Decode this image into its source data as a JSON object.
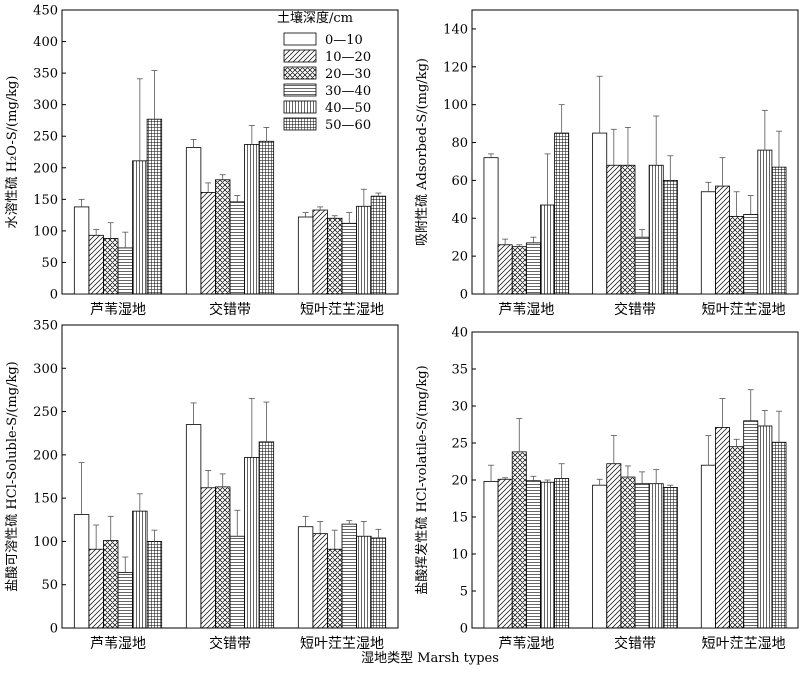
{
  "legend": {
    "title": "土壤深度/cm",
    "items": [
      "0—10",
      "10—20",
      "20—30",
      "30—40",
      "40—50",
      "50—60"
    ]
  },
  "patterns": [
    "empty",
    "diag",
    "cross",
    "hlines",
    "vlines",
    "grid"
  ],
  "xlabel_common": "湿地类型 Marsh types",
  "chart_data": [
    {
      "type": "bar",
      "title": "",
      "ylabel": "水溶性硫 H₂O-S/(mg/kg)",
      "categories": [
        "芦苇湿地",
        "交错带",
        "短叶茳芏湿地"
      ],
      "ylim": [
        0,
        450
      ],
      "yticks": [
        0,
        50,
        100,
        150,
        200,
        250,
        300,
        350,
        400,
        450
      ],
      "series": [
        {
          "name": "0—10",
          "values": [
            138,
            232,
            122
          ],
          "errors": [
            12,
            13,
            7
          ]
        },
        {
          "name": "10—20",
          "values": [
            93,
            161,
            133
          ],
          "errors": [
            9,
            15,
            5
          ]
        },
        {
          "name": "20—30",
          "values": [
            88,
            181,
            120
          ],
          "errors": [
            25,
            8,
            4
          ]
        },
        {
          "name": "30—40",
          "values": [
            73,
            146,
            112
          ],
          "errors": [
            25,
            10,
            17
          ]
        },
        {
          "name": "40—50",
          "values": [
            211,
            237,
            139
          ],
          "errors": [
            130,
            30,
            27
          ]
        },
        {
          "name": "50—60",
          "values": [
            277,
            242,
            155
          ],
          "errors": [
            77,
            22,
            5
          ]
        }
      ]
    },
    {
      "type": "bar",
      "title": "",
      "ylabel": "吸附性硫 Adsorbed-S/(mg/kg)",
      "categories": [
        "芦苇湿地",
        "交错带",
        "短叶茳芏湿地"
      ],
      "ylim": [
        0,
        150
      ],
      "yticks": [
        0,
        20,
        40,
        60,
        80,
        100,
        120,
        140
      ],
      "series": [
        {
          "name": "0—10",
          "values": [
            72,
            85,
            54
          ],
          "errors": [
            2,
            30,
            5
          ]
        },
        {
          "name": "10—20",
          "values": [
            26,
            68,
            57
          ],
          "errors": [
            3,
            19,
            15
          ]
        },
        {
          "name": "20—30",
          "values": [
            25,
            68,
            41
          ],
          "errors": [
            1,
            20,
            13
          ]
        },
        {
          "name": "30—40",
          "values": [
            27,
            30,
            42
          ],
          "errors": [
            3,
            4,
            10
          ]
        },
        {
          "name": "40—50",
          "values": [
            47,
            68,
            76
          ],
          "errors": [
            27,
            26,
            21
          ]
        },
        {
          "name": "50—60",
          "values": [
            85,
            60,
            67
          ],
          "errors": [
            15,
            13,
            19
          ]
        }
      ]
    },
    {
      "type": "bar",
      "title": "",
      "ylabel": "盐酸可溶性硫 HCl-Soluble-S/(mg/kg)",
      "categories": [
        "芦苇湿地",
        "交错带",
        "短叶茳芏湿地"
      ],
      "ylim": [
        0,
        350
      ],
      "yticks": [
        0,
        50,
        100,
        150,
        200,
        250,
        300,
        350
      ],
      "series": [
        {
          "name": "0—10",
          "values": [
            131,
            235,
            117
          ],
          "errors": [
            60,
            25,
            12
          ]
        },
        {
          "name": "10—20",
          "values": [
            91,
            162,
            109
          ],
          "errors": [
            28,
            20,
            14
          ]
        },
        {
          "name": "20—30",
          "values": [
            101,
            163,
            91
          ],
          "errors": [
            28,
            15,
            22
          ]
        },
        {
          "name": "30—40",
          "values": [
            64,
            106,
            120
          ],
          "errors": [
            18,
            30,
            4
          ]
        },
        {
          "name": "40—50",
          "values": [
            135,
            197,
            106
          ],
          "errors": [
            20,
            68,
            17
          ]
        },
        {
          "name": "50—60",
          "values": [
            100,
            215,
            104
          ],
          "errors": [
            13,
            46,
            10
          ]
        }
      ]
    },
    {
      "type": "bar",
      "title": "",
      "ylabel": "盐酸挥发性硫 HCl-volatile-S/(mg/kg)",
      "categories": [
        "芦苇湿地",
        "交错带",
        "短叶茳芏湿地"
      ],
      "ylim": [
        0,
        40
      ],
      "yticks": [
        0,
        5,
        10,
        15,
        20,
        25,
        30,
        35,
        40
      ],
      "series": [
        {
          "name": "0—10",
          "values": [
            19.8,
            19.3,
            22.0
          ],
          "errors": [
            2.2,
            0.8,
            4.0
          ]
        },
        {
          "name": "10—20",
          "values": [
            20.1,
            22.2,
            27.1
          ],
          "errors": [
            0.2,
            3.8,
            3.9
          ]
        },
        {
          "name": "20—30",
          "values": [
            23.8,
            20.4,
            24.5
          ],
          "errors": [
            4.5,
            1.5,
            1.0
          ]
        },
        {
          "name": "30—40",
          "values": [
            19.9,
            19.5,
            28.0
          ],
          "errors": [
            0.6,
            1.6,
            4.2
          ]
        },
        {
          "name": "40—50",
          "values": [
            19.7,
            19.5,
            27.3
          ],
          "errors": [
            0.3,
            1.9,
            2.1
          ]
        },
        {
          "name": "50—60",
          "values": [
            20.2,
            19.0,
            25.1
          ],
          "errors": [
            2.0,
            0.3,
            4.2
          ]
        }
      ]
    }
  ]
}
